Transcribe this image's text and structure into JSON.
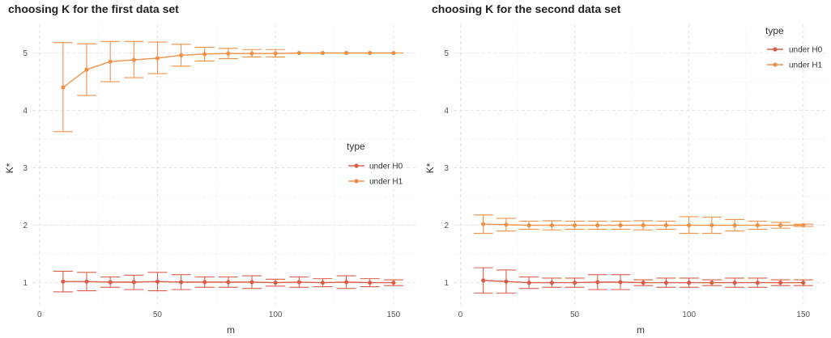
{
  "chart_data": [
    {
      "type": "line",
      "title": "choosing K for the first data set",
      "xlabel": "m",
      "ylabel": "K*",
      "xlim": [
        -3,
        160
      ],
      "ylim": [
        0.6,
        5.5
      ],
      "xticks": [
        0,
        50,
        100,
        150
      ],
      "yticks": [
        1,
        2,
        3,
        4,
        5
      ],
      "grid": true,
      "error_bars": true,
      "legend": {
        "title": "type",
        "position": "right"
      },
      "x": [
        10,
        20,
        30,
        40,
        50,
        60,
        70,
        80,
        90,
        100,
        110,
        120,
        130,
        140,
        150
      ],
      "series": [
        {
          "name": "under H0",
          "color": "#d95f4a",
          "values": [
            1.02,
            1.02,
            1.01,
            1.01,
            1.02,
            1.01,
            1.01,
            1.01,
            1.01,
            1.0,
            1.01,
            1.0,
            1.01,
            1.0,
            1.0
          ],
          "lower": [
            0.84,
            0.86,
            0.92,
            0.88,
            0.86,
            0.88,
            0.92,
            0.92,
            0.9,
            0.94,
            0.92,
            0.93,
            0.9,
            0.93,
            0.95
          ],
          "upper": [
            1.2,
            1.18,
            1.1,
            1.13,
            1.18,
            1.14,
            1.1,
            1.1,
            1.12,
            1.06,
            1.1,
            1.07,
            1.12,
            1.07,
            1.05
          ]
        },
        {
          "name": "under H1",
          "color": "#f0924a",
          "values": [
            4.4,
            4.71,
            4.85,
            4.88,
            4.91,
            4.96,
            4.98,
            4.99,
            4.99,
            4.99,
            5.0,
            5.0,
            5.0,
            5.0,
            5.0
          ],
          "lower": [
            3.63,
            4.26,
            4.5,
            4.57,
            4.64,
            4.77,
            4.86,
            4.9,
            4.93,
            4.93,
            5.0,
            5.0,
            5.0,
            5.0,
            5.0
          ],
          "upper": [
            5.18,
            5.16,
            5.2,
            5.2,
            5.19,
            5.15,
            5.1,
            5.08,
            5.06,
            5.06,
            5.0,
            5.0,
            5.0,
            5.0,
            5.0
          ]
        }
      ]
    },
    {
      "type": "line",
      "title": "choosing K for the second data set",
      "xlabel": "m",
      "ylabel": "K*",
      "xlim": [
        -3,
        160
      ],
      "ylim": [
        0.6,
        5.5
      ],
      "xticks": [
        0,
        50,
        100,
        150
      ],
      "yticks": [
        1,
        2,
        3,
        4,
        5
      ],
      "grid": true,
      "error_bars": true,
      "legend": {
        "title": "type",
        "position": "top-right"
      },
      "x": [
        10,
        20,
        30,
        40,
        50,
        60,
        70,
        80,
        90,
        100,
        110,
        120,
        130,
        140,
        150
      ],
      "series": [
        {
          "name": "under H0",
          "color": "#d95f4a",
          "values": [
            1.04,
            1.02,
            1.0,
            1.0,
            1.0,
            1.01,
            1.01,
            1.0,
            1.0,
            1.0,
            1.0,
            1.0,
            1.0,
            1.0,
            1.0
          ],
          "lower": [
            0.82,
            0.82,
            0.9,
            0.92,
            0.92,
            0.88,
            0.88,
            0.95,
            0.92,
            0.92,
            0.95,
            0.92,
            0.92,
            0.95,
            0.95
          ],
          "upper": [
            1.26,
            1.22,
            1.1,
            1.08,
            1.08,
            1.14,
            1.14,
            1.05,
            1.08,
            1.08,
            1.05,
            1.08,
            1.08,
            1.05,
            1.05
          ]
        },
        {
          "name": "under H1",
          "color": "#f0924a",
          "values": [
            2.02,
            2.01,
            2.0,
            2.0,
            2.0,
            2.0,
            2.0,
            2.0,
            2.0,
            2.0,
            2.0,
            2.0,
            2.0,
            2.0,
            2.0
          ],
          "lower": [
            1.86,
            1.9,
            1.93,
            1.92,
            1.93,
            1.93,
            1.93,
            1.92,
            1.93,
            1.86,
            1.86,
            1.9,
            1.93,
            1.95,
            1.98
          ],
          "upper": [
            2.18,
            2.12,
            2.07,
            2.08,
            2.07,
            2.07,
            2.07,
            2.08,
            2.07,
            2.15,
            2.14,
            2.1,
            2.07,
            2.05,
            2.02
          ]
        }
      ]
    }
  ]
}
